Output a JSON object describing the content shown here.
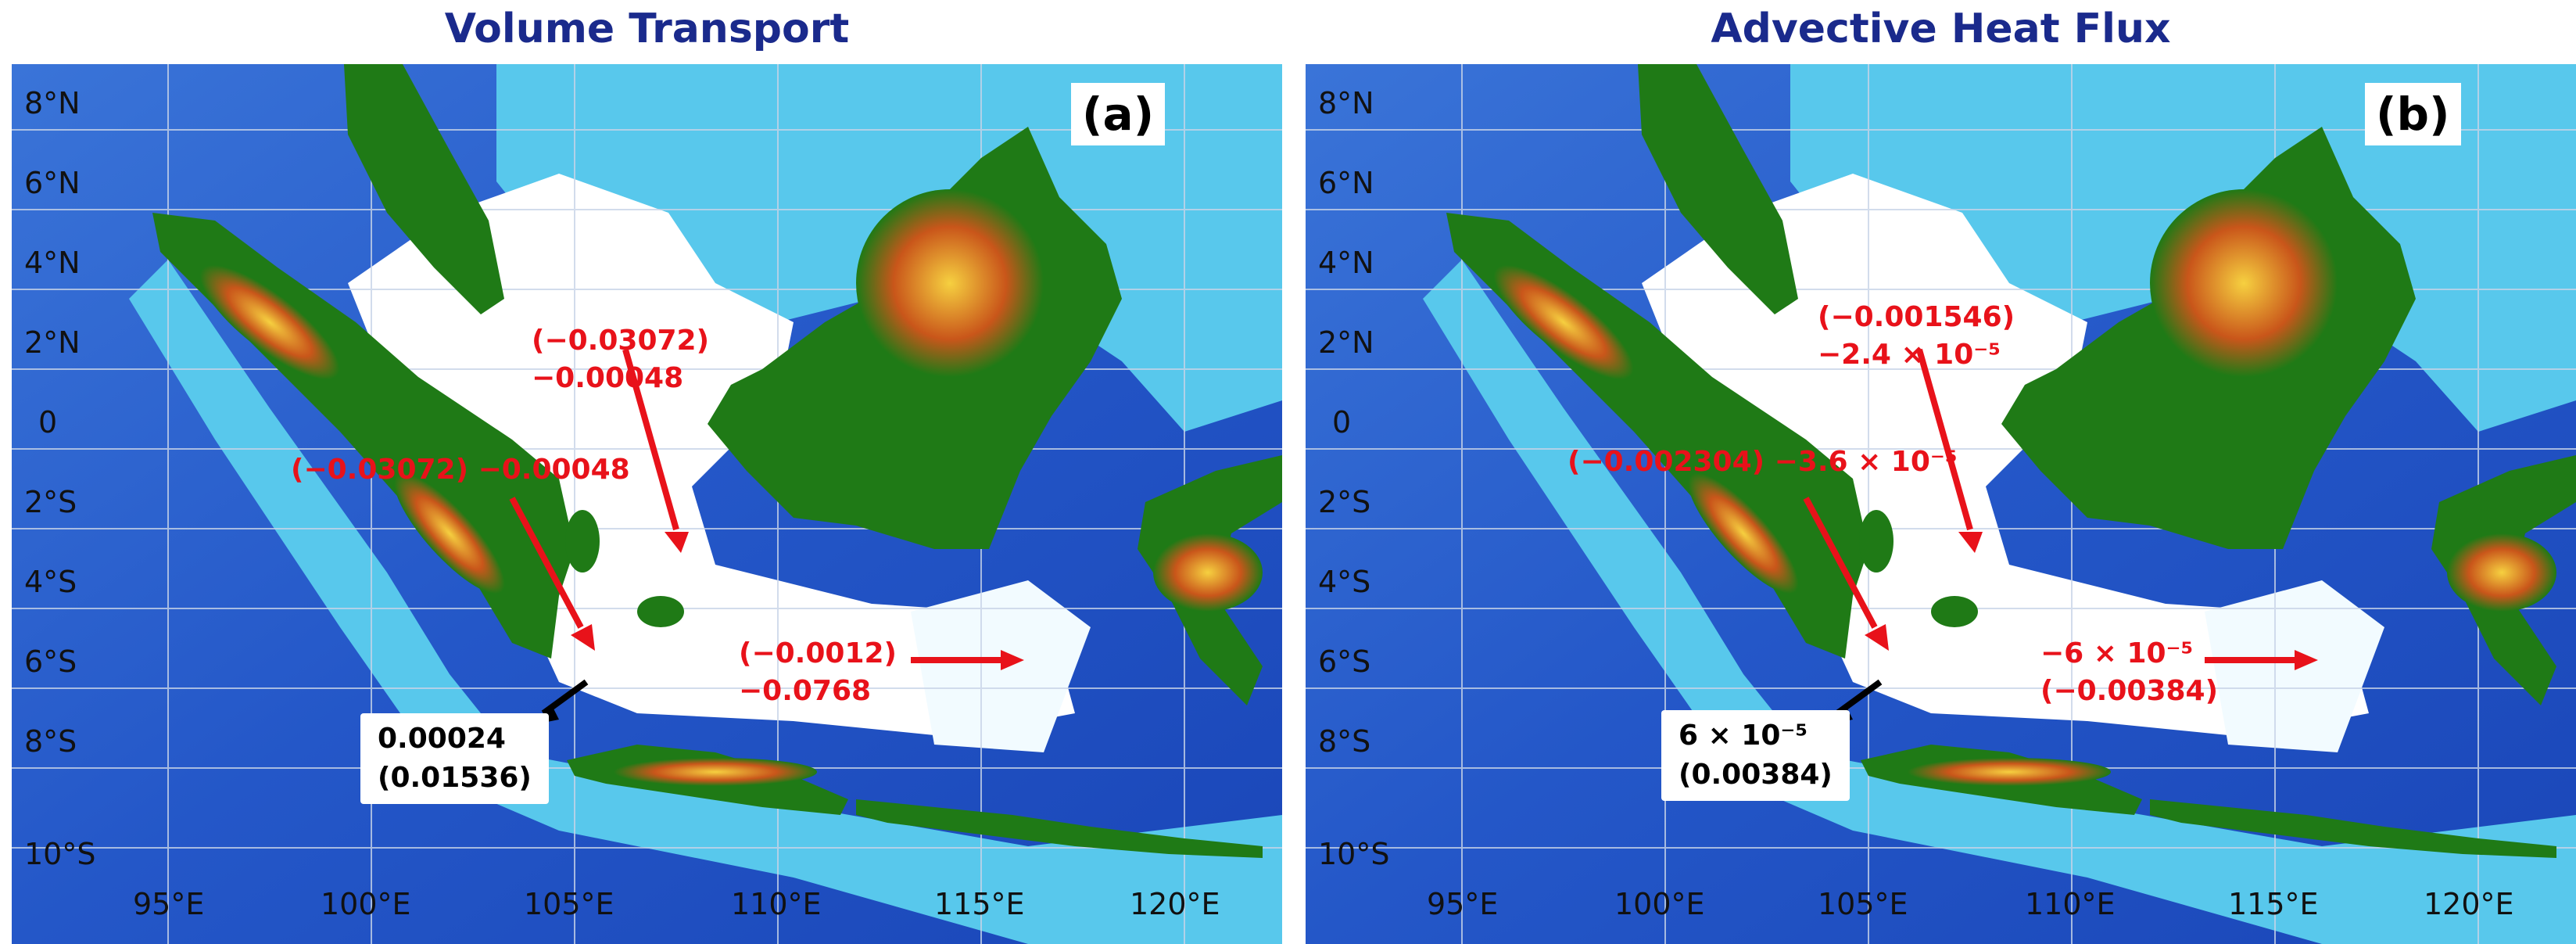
{
  "colors": {
    "title": "#1a2a8c",
    "annotation_red": "#e8121a",
    "annotation_black": "#000000",
    "deep_ocean": "#1e4fc8",
    "shallow_sea": "#5fd0ef",
    "shelf": "#ffffff",
    "land": "#1f7a16",
    "highland": "#e0a020"
  },
  "axes": {
    "lat_labels": [
      "8°N",
      "6°N",
      "4°N",
      "2°N",
      "0",
      "2°S",
      "4°S",
      "6°S",
      "8°S",
      "10°S"
    ],
    "lon_labels": [
      "95°E",
      "100°E",
      "105°E",
      "110°E",
      "115°E",
      "120°E"
    ]
  },
  "panels": [
    {
      "title": "Volume Transport",
      "tag": "(a)",
      "annotations": {
        "north": {
          "line1": "(−0.03072)",
          "line2": "−0.00048"
        },
        "west": {
          "line1": "(−0.03072) −0.00048"
        },
        "east": {
          "line1": "(−0.0012)",
          "line2": "−0.0768"
        },
        "sunda": {
          "line1": "0.00024",
          "line2": "(0.01536)"
        }
      }
    },
    {
      "title": "Advective Heat Flux",
      "tag": "(b)",
      "annotations": {
        "north": {
          "line1": "(−0.001546)",
          "line2": "−2.4 × 10⁻⁵"
        },
        "west": {
          "line1": "(−0.002304) −3.6 × 10⁻⁵"
        },
        "east": {
          "line1": "−6 × 10⁻⁵",
          "line2": "(−0.00384)"
        },
        "sunda": {
          "line1": "6 × 10⁻⁵",
          "line2": "(0.00384)"
        }
      }
    }
  ]
}
